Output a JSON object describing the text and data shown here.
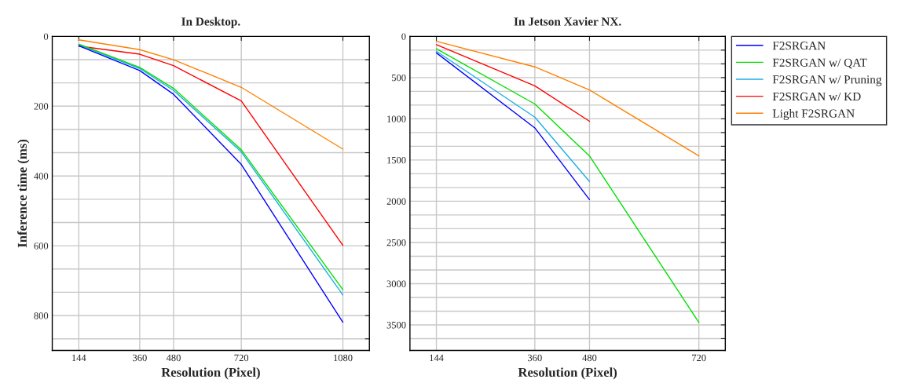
{
  "chart_data": [
    {
      "type": "line",
      "title": "In Desktop.",
      "xlabel": "Resolution (Pixel)",
      "ylabel": "Inference time (ms)",
      "x": [
        144,
        360,
        480,
        720,
        1080
      ],
      "xlim": [
        50,
        1174
      ],
      "xticks": [
        144,
        360,
        480,
        720,
        1080
      ],
      "ylim": [
        900,
        0
      ],
      "yticks": [
        0,
        {
          "value": 66.7,
          "label": null
        },
        {
          "value": 133.3,
          "label": null
        },
        200,
        {
          "value": 266.7,
          "label": null
        },
        {
          "value": 333.3,
          "label": null
        },
        400,
        {
          "value": 466.7,
          "label": null
        },
        {
          "value": 533.3,
          "label": null
        },
        600,
        {
          "value": 666.7,
          "label": null
        },
        {
          "value": 733.3,
          "label": null
        },
        800,
        {
          "value": 866.7,
          "label": null
        }
      ],
      "grid": true,
      "legend": false,
      "line_style": "solid",
      "series": [
        {
          "color": "#0000ff",
          "values": [
            27,
            98,
            166,
            367,
            819
          ]
        },
        {
          "color": "#00e000",
          "values": [
            22,
            89,
            149,
            325,
            726
          ]
        },
        {
          "color": "#1aaee8",
          "values": [
            24,
            92,
            155,
            331,
            741
          ]
        },
        {
          "color": "#ff0000",
          "values": [
            28,
            51,
            84,
            185,
            599
          ]
        },
        {
          "color": "#ff8000",
          "values": [
            10,
            38,
            67,
            146,
            323
          ]
        }
      ]
    },
    {
      "type": "line",
      "title": "In Jetson Xavier NX.",
      "xlabel": "Resolution (Pixel)",
      "x": [
        144,
        360,
        480,
        720
      ],
      "xlim": [
        86,
        778
      ],
      "xticks": [
        144,
        360,
        480,
        720
      ],
      "ylim": [
        3810,
        0
      ],
      "yticks": [
        0,
        {
          "value": 166.7,
          "label": null
        },
        {
          "value": 333.3,
          "label": null
        },
        500,
        {
          "value": 666.7,
          "label": null
        },
        {
          "value": 833.3,
          "label": null
        },
        1000,
        {
          "value": 1166.7,
          "label": null
        },
        {
          "value": 1333.3,
          "label": null
        },
        1500,
        {
          "value": 1666.7,
          "label": null
        },
        {
          "value": 1833.3,
          "label": null
        },
        2000,
        {
          "value": 2166.7,
          "label": null
        },
        {
          "value": 2333.3,
          "label": null
        },
        2500,
        {
          "value": 2666.7,
          "label": null
        },
        {
          "value": 2833.3,
          "label": null
        },
        3000,
        {
          "value": 3166.7,
          "label": null
        },
        {
          "value": 3333.3,
          "label": null
        },
        3500,
        {
          "value": 3666.7,
          "label": null
        }
      ],
      "grid": true,
      "legend": "right",
      "line_style": "solid",
      "series": [
        {
          "name": "F2SRGAN",
          "color": "#0000ff",
          "values": [
            200,
            1110,
            1980,
            null
          ]
        },
        {
          "name": "F2SRGAN w/ QAT",
          "color": "#00e000",
          "values": [
            150,
            820,
            1450,
            3470
          ]
        },
        {
          "name": "F2SRGAN w/ Pruning",
          "color": "#1aaee8",
          "values": [
            180,
            980,
            1760,
            null
          ]
        },
        {
          "name": "F2SRGAN w/ KD",
          "color": "#ff0000",
          "values": [
            100,
            600,
            1030,
            null
          ]
        },
        {
          "name": "Light F2SRGAN",
          "color": "#ff8000",
          "values": [
            60,
            370,
            650,
            1450
          ]
        }
      ]
    }
  ]
}
